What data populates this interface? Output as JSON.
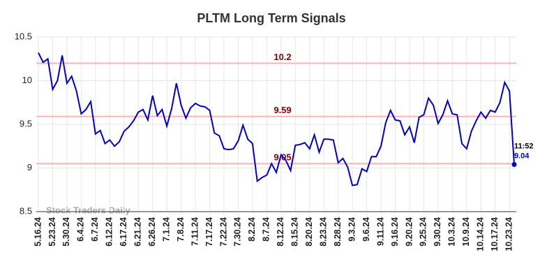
{
  "chart_data": {
    "type": "line",
    "title": "PLTM Long Term Signals",
    "watermark": "Stock Traders Daily",
    "categories": [
      "5.16.24",
      null,
      null,
      "5.23.24",
      null,
      null,
      "5.30.24",
      null,
      null,
      "6.4.24",
      null,
      null,
      "6.7.24",
      null,
      null,
      "6.12.24",
      null,
      null,
      "6.17.24",
      null,
      null,
      "6.21.24",
      null,
      null,
      "6.26.24",
      null,
      null,
      "7.1.24",
      null,
      null,
      "7.8.24",
      null,
      null,
      "7.11.24",
      null,
      null,
      "7.17.24",
      null,
      null,
      "7.22.24",
      null,
      null,
      "7.30.24",
      null,
      null,
      "8.2.24",
      null,
      null,
      "8.7.24",
      null,
      null,
      "8.12.24",
      null,
      null,
      "8.15.24",
      null,
      null,
      "8.20.24",
      null,
      null,
      "8.23.24",
      null,
      null,
      "8.28.24",
      null,
      null,
      "9.3.24",
      null,
      null,
      "9.6.24",
      null,
      null,
      "9.11.24",
      null,
      null,
      "9.16.24",
      null,
      null,
      "9.20.24",
      null,
      null,
      "9.25.24",
      null,
      null,
      "9.30.24",
      null,
      null,
      "10.3.24",
      null,
      null,
      "10.9.24",
      null,
      null,
      "10.14.24",
      null,
      null,
      "10.17.24",
      null,
      null,
      "10.23.24",
      null
    ],
    "series": [
      {
        "color": "#0000cc",
        "values": [
          10.32,
          10.21,
          10.25,
          9.9,
          10.0,
          10.29,
          9.97,
          10.05,
          9.88,
          9.62,
          9.67,
          9.76,
          9.39,
          9.43,
          9.28,
          9.32,
          9.25,
          9.3,
          9.42,
          9.47,
          9.54,
          9.64,
          9.67,
          9.55,
          9.83,
          9.6,
          9.67,
          9.48,
          9.68,
          9.97,
          9.72,
          9.57,
          9.69,
          9.74,
          9.71,
          9.7,
          9.66,
          9.4,
          9.37,
          9.22,
          9.21,
          9.22,
          9.31,
          9.49,
          9.33,
          9.28,
          8.85,
          8.89,
          8.92,
          9.05,
          8.95,
          9.15,
          9.09,
          8.97,
          9.26,
          9.27,
          9.29,
          9.22,
          9.38,
          9.18,
          9.33,
          9.33,
          9.32,
          9.06,
          9.11,
          9.01,
          8.8,
          8.81,
          8.99,
          8.96,
          9.13,
          9.13,
          9.25,
          9.52,
          9.66,
          9.55,
          9.54,
          9.38,
          9.47,
          9.29,
          9.58,
          9.61,
          9.8,
          9.72,
          9.51,
          9.61,
          9.77,
          9.62,
          9.61,
          9.28,
          9.22,
          9.42,
          9.54,
          9.64,
          9.57,
          9.66,
          9.64,
          9.75,
          9.98,
          9.88,
          9.04
        ]
      }
    ],
    "hlines": [
      10.2,
      9.59,
      9.05
    ],
    "hline_color": "#ffb3b3",
    "hline_label_color": "#8b0000",
    "last_time": "11:52",
    "ylim": [
      8.5,
      10.5
    ],
    "yticks": [
      8.5,
      9,
      9.5,
      10,
      10.5
    ],
    "grid": true
  }
}
